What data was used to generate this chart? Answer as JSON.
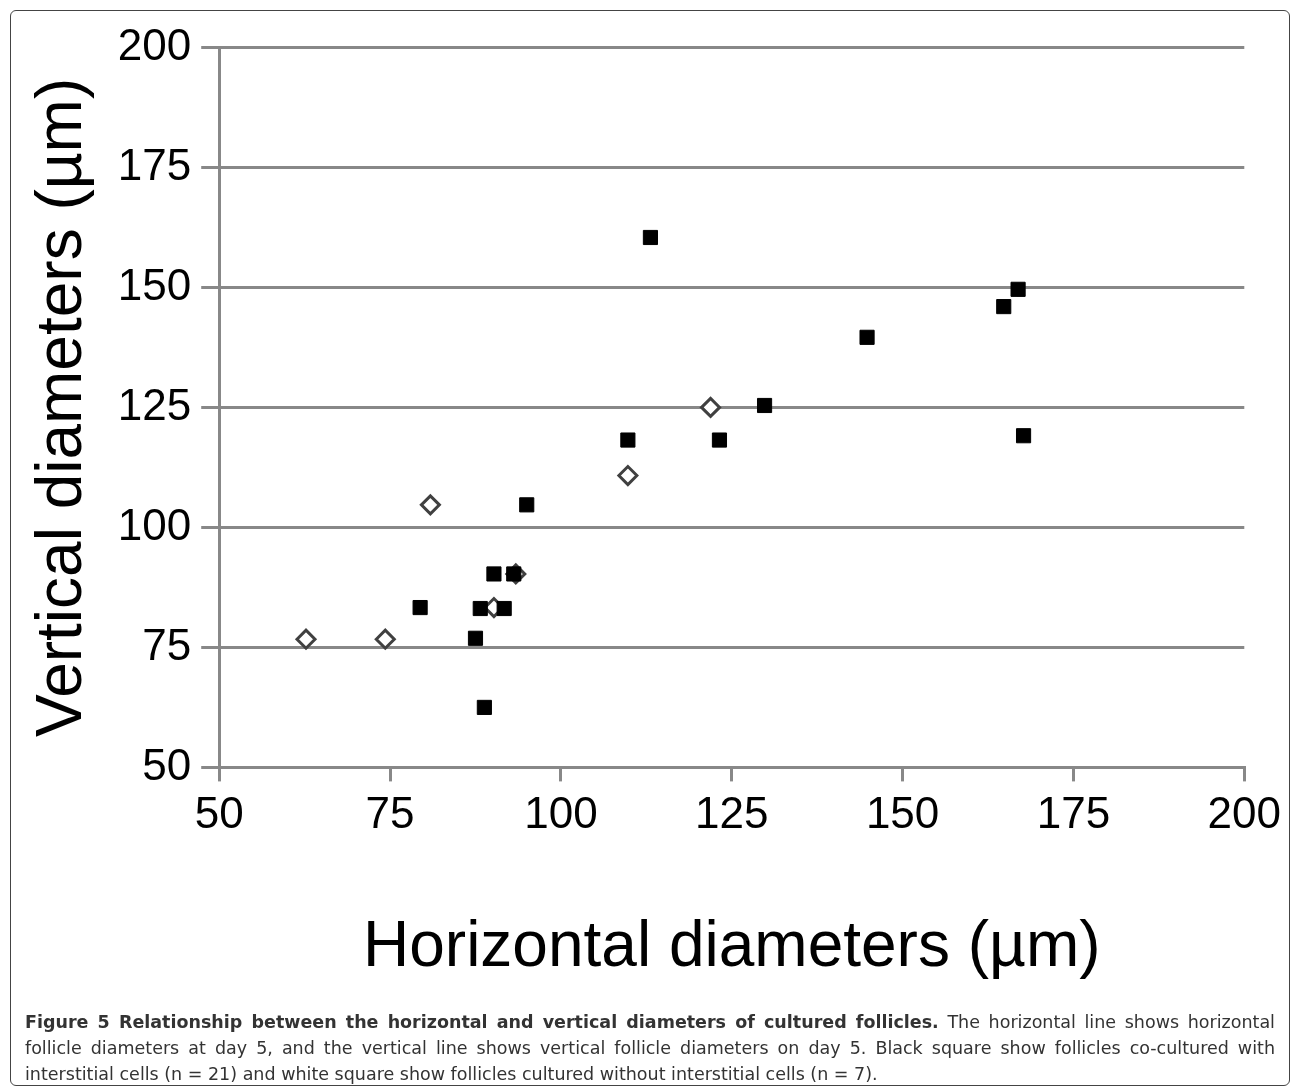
{
  "chart_data": {
    "type": "scatter",
    "xlabel": "Horizontal diameters (µm)",
    "ylabel": "Vertical diameters (µm)",
    "xlim": [
      50,
      200
    ],
    "xticks": [
      50,
      75,
      100,
      125,
      150,
      175,
      200
    ],
    "ylim": [
      50,
      200
    ],
    "yticks": [
      50,
      75,
      100,
      125,
      150,
      175,
      200
    ],
    "grid": "y",
    "legend": false,
    "series": [
      {
        "color": "#000000",
        "marker": "square",
        "x": [
          113.1,
          166.9,
          164.8,
          144.8,
          129.8,
          109.8,
          123.2,
          167.7,
          95.0,
          79.4,
          90.2,
          93.1,
          88.2,
          91.7,
          87.5,
          88.8
        ],
        "values": [
          160.4,
          149.6,
          146.0,
          139.6,
          125.4,
          118.2,
          118.2,
          119.1,
          104.7,
          83.3,
          90.3,
          90.3,
          83.1,
          83.1,
          76.9,
          62.5
        ]
      },
      {
        "color": "#ffffff",
        "marker": "diamond",
        "x": [
          62.7,
          74.3,
          80.9,
          109.8,
          121.9,
          93.4,
          90.2
        ],
        "values": [
          76.7,
          76.7,
          104.7,
          110.8,
          125.0,
          90.3,
          83.3
        ]
      }
    ],
    "annotations": [
      "Figure 5 Relationship between the horizontal and vertical diameters of cultured follicles.",
      "The horizontal line shows horizontal follicle diameters at day 5, and the vertical line shows vertical follicle diameters on day 5. Black square show follicles co-cultured with interstitial cells (n = 21) and white square show follicles cultured without interstitial cells (n = 7)."
    ]
  }
}
